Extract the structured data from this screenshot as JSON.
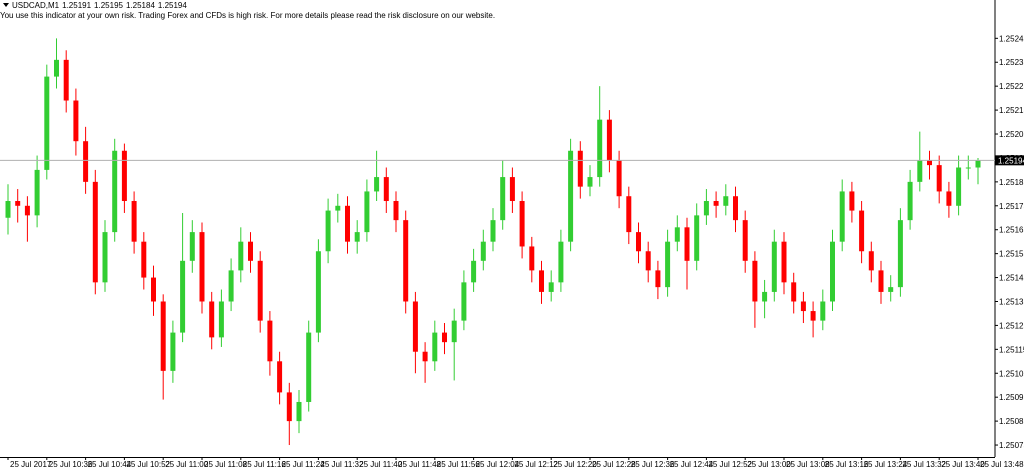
{
  "chart_data": {
    "type": "candlestick",
    "title": "USDCAD,M1",
    "subtitle": "You use this indicator at your own risk. Trading Forex and CFDs is high risk. For more details please read the risk disclosure on our website.",
    "up_color": "#32cd32",
    "down_color": "#ff0000",
    "categories": [
      "25 Jul 2017",
      null,
      null,
      null,
      "25 Jul 10:36",
      null,
      null,
      null,
      "25 Jul 10:44",
      null,
      null,
      null,
      "25 Jul 10:52",
      null,
      null,
      null,
      "25 Jul 11:00",
      null,
      null,
      null,
      "25 Jul 11:08",
      null,
      null,
      null,
      "25 Jul 11:16",
      null,
      null,
      null,
      "25 Jul 11:24",
      null,
      null,
      null,
      "25 Jul 11:32",
      null,
      null,
      null,
      "25 Jul 11:40",
      null,
      null,
      null,
      "25 Jul 11:48",
      null,
      null,
      null,
      "25 Jul 11:56",
      null,
      null,
      null,
      "25 Jul 12:04",
      null,
      null,
      null,
      "25 Jul 12:12",
      null,
      null,
      null,
      "25 Jul 12:20",
      null,
      null,
      null,
      "25 Jul 12:28",
      null,
      null,
      null,
      "25 Jul 12:36",
      null,
      null,
      null,
      "25 Jul 12:44",
      null,
      null,
      null,
      "25 Jul 12:52",
      null,
      null,
      null,
      "25 Jul 13:00",
      null,
      null,
      null,
      "25 Jul 13:08",
      null,
      null,
      null,
      "25 Jul 13:16",
      null,
      null,
      null,
      "25 Jul 13:24",
      null,
      null,
      null,
      "25 Jul 13:32",
      null,
      null,
      null,
      "25 Jul 13:40",
      null,
      null,
      null,
      "25 Jul 13:48"
    ],
    "open": [
      1.2517,
      1.25177,
      1.25175,
      1.25171,
      1.2519,
      1.25229,
      1.25236,
      1.25219,
      1.25202,
      1.25185,
      1.25143,
      1.25164,
      1.25198,
      1.25177,
      1.2516,
      1.25145,
      1.25135,
      1.25106,
      1.25122,
      1.25152,
      1.25164,
      1.25135,
      1.2512,
      1.25135,
      1.25148,
      1.2516,
      1.25152,
      1.25127,
      1.2511,
      1.25097,
      1.25085,
      1.25093,
      1.25122,
      1.25156,
      1.25173,
      1.25175,
      1.2516,
      1.25164,
      1.25181,
      1.25187,
      1.25177,
      1.25169,
      1.25135,
      1.25114,
      1.2511,
      1.25122,
      1.25118,
      1.25127,
      1.25143,
      1.25152,
      1.2516,
      1.25169,
      1.25187,
      1.25177,
      1.25158,
      1.25148,
      1.25139,
      1.25143,
      1.2516,
      1.25198,
      1.25183,
      1.25187,
      1.25211,
      1.25194,
      1.25179,
      1.25164,
      1.25156,
      1.25148,
      1.25141,
      1.2516,
      1.25166,
      1.25152,
      1.25171,
      1.25177,
      1.25175,
      1.25179,
      1.25169,
      1.25152,
      1.25135,
      1.25139,
      1.2516,
      1.25143,
      1.25135,
      1.25131,
      1.25127,
      1.25135,
      1.2516,
      1.25181,
      1.25173,
      1.25156,
      1.25148,
      1.25139,
      1.25141,
      1.25169,
      1.25185,
      1.25194,
      1.25192,
      1.25181,
      1.25175,
      1.25191,
      1.25191
    ],
    "high": [
      1.25184,
      1.25182,
      1.25179,
      1.25196,
      1.25234,
      1.25245,
      1.2524,
      1.25224,
      1.25208,
      1.2519,
      1.25169,
      1.25203,
      1.25201,
      1.25181,
      1.25164,
      1.2515,
      1.25138,
      1.25127,
      1.25172,
      1.25169,
      1.25168,
      1.25139,
      1.2514,
      1.25153,
      1.25166,
      1.25164,
      1.25156,
      1.25131,
      1.25114,
      1.25101,
      1.25098,
      1.25127,
      1.25161,
      1.25178,
      1.2518,
      1.25179,
      1.25169,
      1.25186,
      1.25198,
      1.25191,
      1.25181,
      1.25173,
      1.25139,
      1.25118,
      1.25127,
      1.25126,
      1.25132,
      1.25148,
      1.25157,
      1.25165,
      1.25174,
      1.25194,
      1.25191,
      1.25181,
      1.25162,
      1.25152,
      1.25148,
      1.25165,
      1.25203,
      1.25202,
      1.25192,
      1.25225,
      1.25215,
      1.25198,
      1.25183,
      1.25168,
      1.2516,
      1.25152,
      1.25165,
      1.25171,
      1.2517,
      1.25176,
      1.25182,
      1.25181,
      1.25184,
      1.25183,
      1.25173,
      1.25156,
      1.25144,
      1.25165,
      1.25164,
      1.25147,
      1.25139,
      1.25135,
      1.2514,
      1.25165,
      1.25186,
      1.25185,
      1.25177,
      1.2516,
      1.25152,
      1.25146,
      1.25174,
      1.2519,
      1.25206,
      1.25198,
      1.25196,
      1.25185,
      1.25196,
      1.25196,
      1.25195
    ],
    "low": [
      1.25163,
      1.25168,
      1.2516,
      1.25166,
      1.25186,
      1.25224,
      1.25214,
      1.25196,
      1.2518,
      1.25138,
      1.25139,
      1.2516,
      1.25172,
      1.25155,
      1.2514,
      1.25129,
      1.25094,
      1.25101,
      1.25118,
      1.25147,
      1.2513,
      1.25115,
      1.25116,
      1.25131,
      1.25143,
      1.25147,
      1.25122,
      1.25104,
      1.25092,
      1.25075,
      1.2508,
      1.25089,
      1.25118,
      1.25151,
      1.25168,
      1.25155,
      1.25155,
      1.2516,
      1.25177,
      1.25172,
      1.25164,
      1.2513,
      1.25105,
      1.25101,
      1.25106,
      1.25113,
      1.25102,
      1.25123,
      1.25139,
      1.25148,
      1.25156,
      1.25165,
      1.25172,
      1.25153,
      1.25143,
      1.25134,
      1.25135,
      1.25139,
      1.25156,
      1.25178,
      1.25179,
      1.25183,
      1.25189,
      1.25174,
      1.25159,
      1.25151,
      1.25143,
      1.25136,
      1.25137,
      1.25156,
      1.2514,
      1.25148,
      1.25167,
      1.2517,
      1.25171,
      1.25164,
      1.25147,
      1.25124,
      1.25128,
      1.25135,
      1.25138,
      1.2513,
      1.25126,
      1.2512,
      1.25123,
      1.25131,
      1.25156,
      1.25168,
      1.25151,
      1.25143,
      1.25134,
      1.25135,
      1.25137,
      1.25165,
      1.25181,
      1.25186,
      1.25176,
      1.2517,
      1.25171,
      1.25186,
      1.25184
    ],
    "close": [
      1.25177,
      1.25175,
      1.25171,
      1.2519,
      1.25229,
      1.25236,
      1.25219,
      1.25202,
      1.25185,
      1.25143,
      1.25164,
      1.25198,
      1.25177,
      1.2516,
      1.25145,
      1.25135,
      1.25106,
      1.25122,
      1.25152,
      1.25164,
      1.25135,
      1.2512,
      1.25135,
      1.25148,
      1.2516,
      1.25152,
      1.25127,
      1.2511,
      1.25097,
      1.25085,
      1.25093,
      1.25122,
      1.25156,
      1.25173,
      1.25175,
      1.2516,
      1.25164,
      1.25181,
      1.25187,
      1.25177,
      1.25169,
      1.25135,
      1.25114,
      1.2511,
      1.25122,
      1.25118,
      1.25127,
      1.25143,
      1.25152,
      1.2516,
      1.25169,
      1.25187,
      1.25177,
      1.25158,
      1.25148,
      1.25139,
      1.25143,
      1.2516,
      1.25198,
      1.25183,
      1.25187,
      1.25211,
      1.25194,
      1.25179,
      1.25164,
      1.25156,
      1.25148,
      1.25141,
      1.2516,
      1.25166,
      1.25152,
      1.25171,
      1.25177,
      1.25175,
      1.25179,
      1.25169,
      1.25152,
      1.25135,
      1.25139,
      1.2516,
      1.25143,
      1.25135,
      1.25131,
      1.25127,
      1.25135,
      1.2516,
      1.25181,
      1.25173,
      1.25156,
      1.25148,
      1.25139,
      1.25141,
      1.25169,
      1.25185,
      1.25194,
      1.25192,
      1.25181,
      1.25175,
      1.25191,
      1.25191,
      1.25194
    ],
    "ylim": [
      1.2507,
      1.25256
    ],
    "yticks": [
      1.25075,
      1.25085,
      1.25095,
      1.25105,
      1.25115,
      1.25125,
      1.25135,
      1.25145,
      1.25155,
      1.25165,
      1.25175,
      1.25185,
      1.25195,
      1.25205,
      1.25215,
      1.25225,
      1.25235,
      1.25245
    ]
  }
}
